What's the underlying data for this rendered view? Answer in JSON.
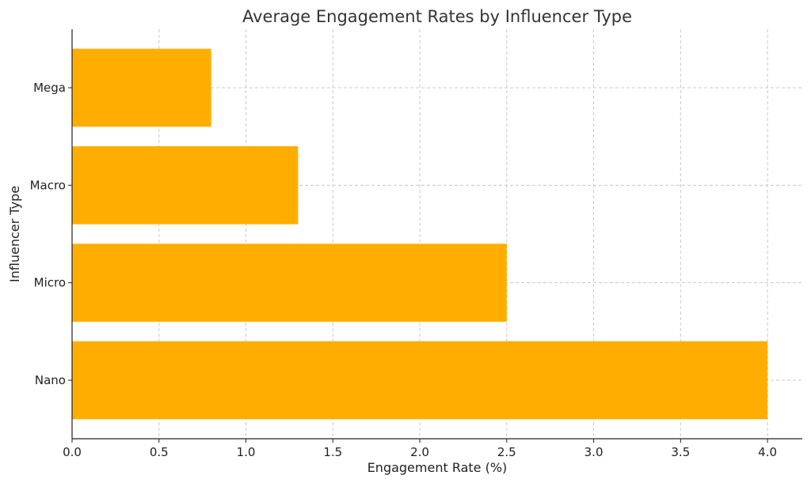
{
  "chart_data": {
    "type": "bar",
    "orientation": "horizontal",
    "title": "Average Engagement Rates by Influencer Type",
    "xlabel": "Engagement Rate (%)",
    "ylabel": "Influencer Type",
    "categories": [
      "Nano",
      "Micro",
      "Macro",
      "Mega"
    ],
    "values": [
      4.0,
      2.5,
      1.3,
      0.8
    ],
    "xlim": [
      0,
      4.2
    ],
    "xticks": [
      "0.0",
      "0.5",
      "1.0",
      "1.5",
      "2.0",
      "2.5",
      "3.0",
      "3.5",
      "4.0"
    ],
    "grid": true,
    "bar_color": "#FFAD00"
  }
}
